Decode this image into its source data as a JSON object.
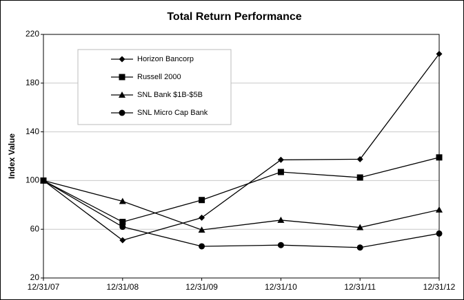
{
  "chart_data": {
    "type": "line",
    "title": "Total Return Performance",
    "y_label": "Index Value",
    "categories": [
      "12/31/07",
      "12/31/08",
      "12/31/09",
      "12/31/10",
      "12/31/11",
      "12/31/12"
    ],
    "series": [
      {
        "name": "Horizon Bancorp",
        "color": "#000000",
        "marker": "diamond",
        "values": [
          100,
          51,
          69.5,
          117,
          117.5,
          204
        ]
      },
      {
        "name": "Russell 2000",
        "color": "#000000",
        "marker": "square",
        "values": [
          100,
          66,
          84,
          107,
          102.5,
          119
        ]
      },
      {
        "name": "SNL Bank $1B-$5B",
        "color": "#000000",
        "marker": "triangle",
        "values": [
          100,
          83,
          59.5,
          67.5,
          61.5,
          76
        ]
      },
      {
        "name": "SNL Micro Cap Bank",
        "color": "#000000",
        "marker": "circle",
        "values": [
          100,
          62,
          46,
          47,
          45,
          56.5
        ]
      }
    ],
    "ylim": [
      20,
      220
    ],
    "yticks": [
      20,
      60,
      100,
      140,
      180,
      220
    ],
    "grid": true,
    "legend": "upper-left"
  }
}
